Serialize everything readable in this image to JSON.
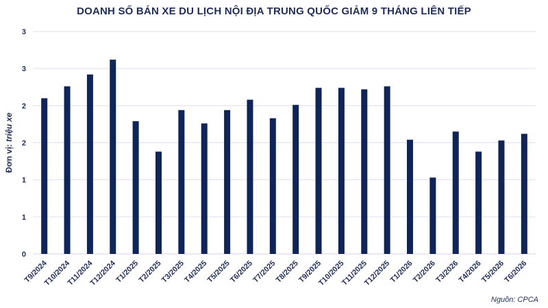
{
  "chart_data": {
    "type": "bar",
    "title": "DOANH SỐ BÁN XE DU LỊCH NỘI ĐỊA TRUNG QUỐC GIẢM 9 THÁNG LIÊN TIẾP",
    "ylabel_plain": "Đơn vị:",
    "ylabel_italic": "triệu xe",
    "xlabel": "",
    "ylim": [
      0,
      3
    ],
    "yticks": [
      0,
      0.5,
      1,
      1.5,
      2,
      2.5,
      3
    ],
    "ytick_labels": [
      "0",
      "1",
      "1",
      "2",
      "2",
      "3",
      "3"
    ],
    "categories": [
      "T9/2024",
      "T10/2024",
      "T11/2024",
      "T12/2024",
      "T1/2025",
      "T2/2025",
      "T3/2025",
      "T4/2025",
      "T5/2025",
      "T6/2025",
      "T7/2025",
      "T8/2025",
      "T9/2025",
      "T10/2025",
      "T11/2025",
      "T12/2025",
      "T1/2026",
      "T2/2026",
      "T3/2026",
      "T4/2026",
      "T5/2026",
      "T6/2026"
    ],
    "values": [
      2.1,
      2.26,
      2.42,
      2.62,
      1.79,
      1.38,
      1.94,
      1.76,
      1.94,
      2.08,
      1.83,
      2.01,
      2.24,
      2.24,
      2.22,
      2.26,
      1.54,
      1.03,
      1.65,
      1.38,
      1.53,
      1.62
    ],
    "bar_color": "#0f2557",
    "grid": true,
    "grid_color": "#e4dcef"
  },
  "source": "Nguồn: CPCA"
}
